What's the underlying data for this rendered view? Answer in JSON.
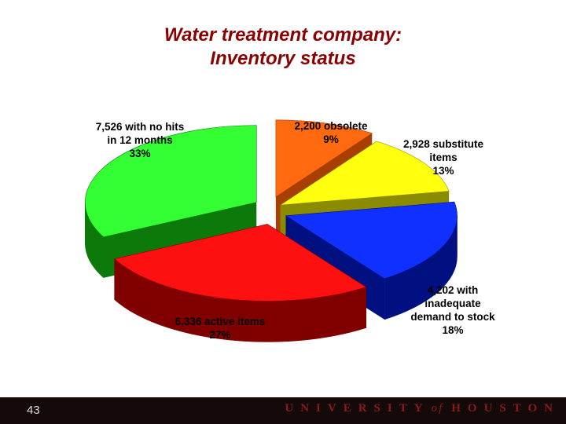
{
  "title": {
    "line1": "Water treatment company:",
    "line2": "Inventory status"
  },
  "chart_data": {
    "type": "pie",
    "title": "Water treatment company: Inventory status",
    "slices": [
      {
        "label_lines": [
          "2,200 obsolete",
          "9%"
        ],
        "value": 2200,
        "percent": 9,
        "color": "#FF6A10",
        "side": "#A83E00"
      },
      {
        "label_lines": [
          "2,928 substitute",
          "items",
          "13%"
        ],
        "value": 2928,
        "percent": 13,
        "color": "#FFFF10",
        "side": "#8B8B00"
      },
      {
        "label_lines": [
          "4,202 with",
          "inadequate",
          "demand to stock",
          "18%"
        ],
        "value": 4202,
        "percent": 18,
        "color": "#1030FF",
        "side": "#001080"
      },
      {
        "label_lines": [
          "6,336 active items",
          "27%"
        ],
        "value": 6336,
        "percent": 27,
        "color": "#FF1010",
        "side": "#800000"
      },
      {
        "label_lines": [
          "7,526 with no hits",
          "in 12 months",
          "33%"
        ],
        "value": 7526,
        "percent": 33,
        "color": "#33FF33",
        "side": "#0B7A0B"
      }
    ],
    "legend": "none"
  },
  "footer": {
    "page_number": "43",
    "university_word": "UNIVERSITY",
    "of_word": "of",
    "houston_word": "HOUSTON"
  }
}
